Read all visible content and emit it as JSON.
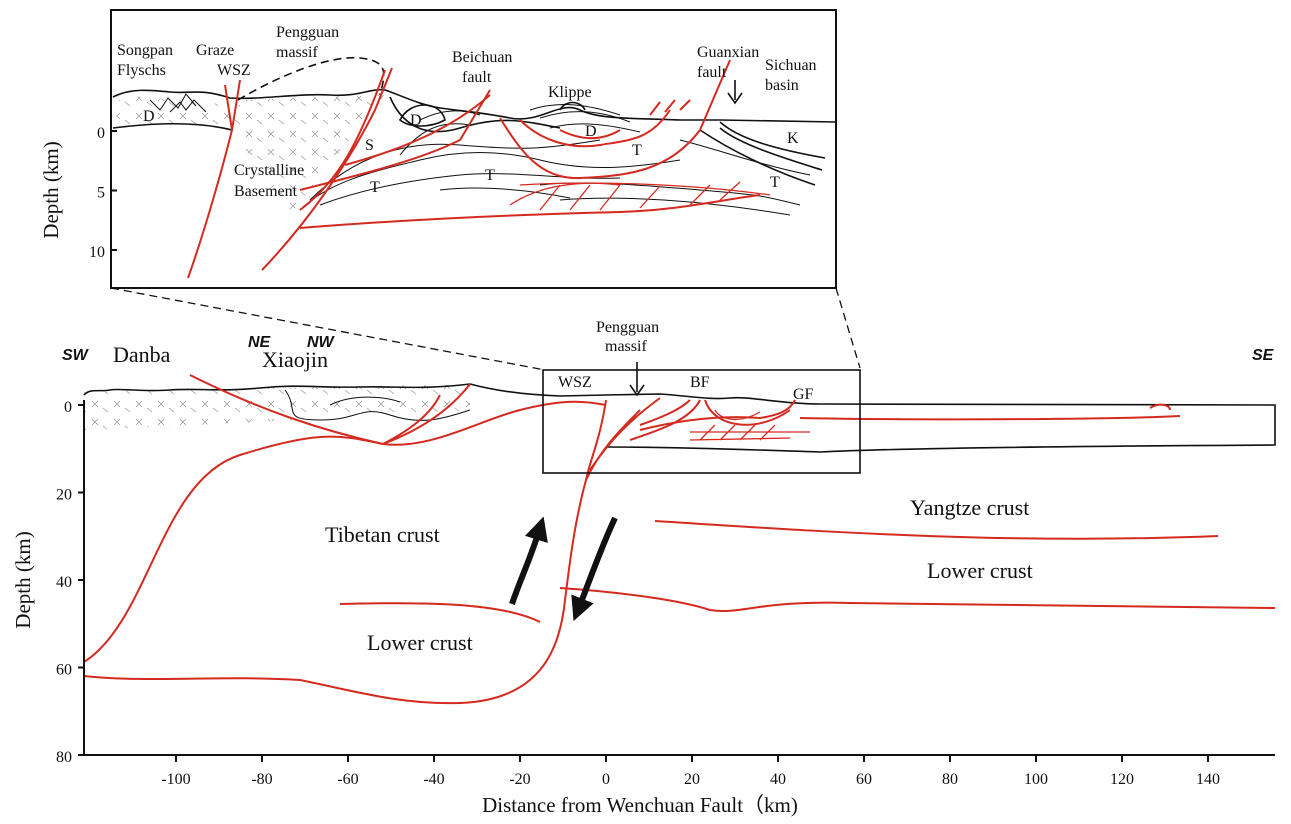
{
  "inset": {
    "y_axis_label": "Depth (km)",
    "y_ticks": [
      0,
      5,
      10
    ],
    "labels": [
      "Songpan",
      "Flyschs",
      "Graze",
      "WSZ",
      "Pengguan",
      "massif",
      "Beichuan",
      "fault",
      "Klippe",
      "Guanxian",
      "fault",
      "Sichuan",
      "basin",
      "D",
      "D",
      "D",
      "S",
      "T",
      "T",
      "T",
      "T",
      "K",
      "Crystalline",
      "Basement"
    ]
  },
  "main": {
    "y_axis_label": "Depth (km)",
    "x_axis_label": "Distance from Wenchuan Fault（km)",
    "y_ticks": [
      0,
      20,
      40,
      60,
      80
    ],
    "x_ticks": [
      -100,
      -80,
      -60,
      -40,
      -20,
      0,
      20,
      40,
      60,
      80,
      100,
      120,
      140
    ],
    "labels": [
      "SW",
      "Danba",
      "NE",
      "NW",
      "Xiaojin",
      "Pengguan",
      "massif",
      "WSZ",
      "BF",
      "GF",
      "SE",
      "Yangtze crust",
      "Tibetan crust",
      "Lower crust",
      "Lower crust"
    ]
  }
}
